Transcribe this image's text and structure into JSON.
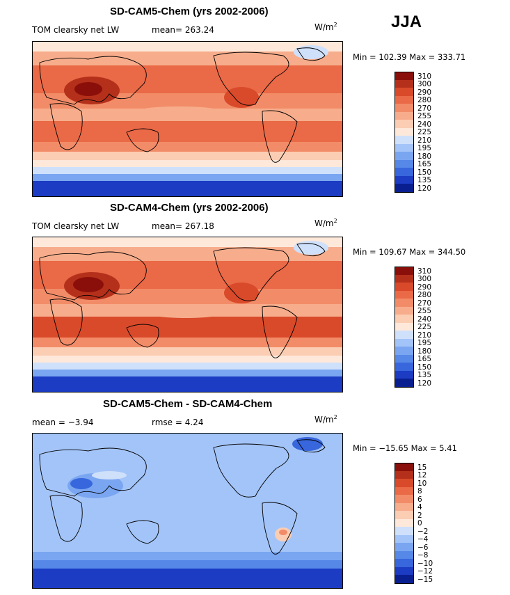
{
  "season": "JJA",
  "palettes": {
    "abs": [
      "#0a1f8f",
      "#1c3cc4",
      "#3866dc",
      "#5688e8",
      "#7aa6f1",
      "#a3c4f8",
      "#cfe0fb",
      "#fde8da",
      "#fbcdb3",
      "#f7ad8c",
      "#f28c68",
      "#ea6946",
      "#d94a2a",
      "#b5301a",
      "#8a0f0a"
    ],
    "diff": [
      "#0a1f8f",
      "#1c3cc4",
      "#3866dc",
      "#5688e8",
      "#7aa6f1",
      "#a3c4f8",
      "#cfe0fb",
      "#fde8da",
      "#fbcdb3",
      "#f7ad8c",
      "#f28c68",
      "#ea6946",
      "#d94a2a",
      "#b5301a",
      "#8a0f0a"
    ]
  },
  "panels": [
    {
      "title": "SD-CAM5-Chem (yrs 2002-2006)",
      "left_label": "TOM clearsky net LW",
      "stat1": "mean= 263.24",
      "stat2": "",
      "units": "W/m",
      "units_sup": "2",
      "minmax": "Min = 102.39 Max = 333.71",
      "palette": "abs",
      "levels": [
        "310",
        "300",
        "290",
        "280",
        "270",
        "255",
        "240",
        "225",
        "210",
        "195",
        "180",
        "165",
        "150",
        "135",
        "120"
      ]
    },
    {
      "title": "SD-CAM4-Chem (yrs 2002-2006)",
      "left_label": "TOM clearsky net LW",
      "stat1": "mean= 267.18",
      "stat2": "",
      "units": "W/m",
      "units_sup": "2",
      "minmax": "Min = 109.67 Max = 344.50",
      "palette": "abs",
      "levels": [
        "310",
        "300",
        "290",
        "280",
        "270",
        "255",
        "240",
        "225",
        "210",
        "195",
        "180",
        "165",
        "150",
        "135",
        "120"
      ]
    },
    {
      "title": "SD-CAM5-Chem - SD-CAM4-Chem",
      "left_label": "mean =  −3.94",
      "stat1": "",
      "stat2": "rmse =   4.24",
      "units": "W/m",
      "units_sup": "2",
      "minmax": "Min = −15.65 Max =   5.41",
      "palette": "diff",
      "levels": [
        "15",
        "12",
        "10",
        "8",
        "6",
        "4",
        "2",
        "0",
        "−2",
        "−4",
        "−6",
        "−8",
        "−10",
        "−12",
        "−15"
      ]
    }
  ]
}
